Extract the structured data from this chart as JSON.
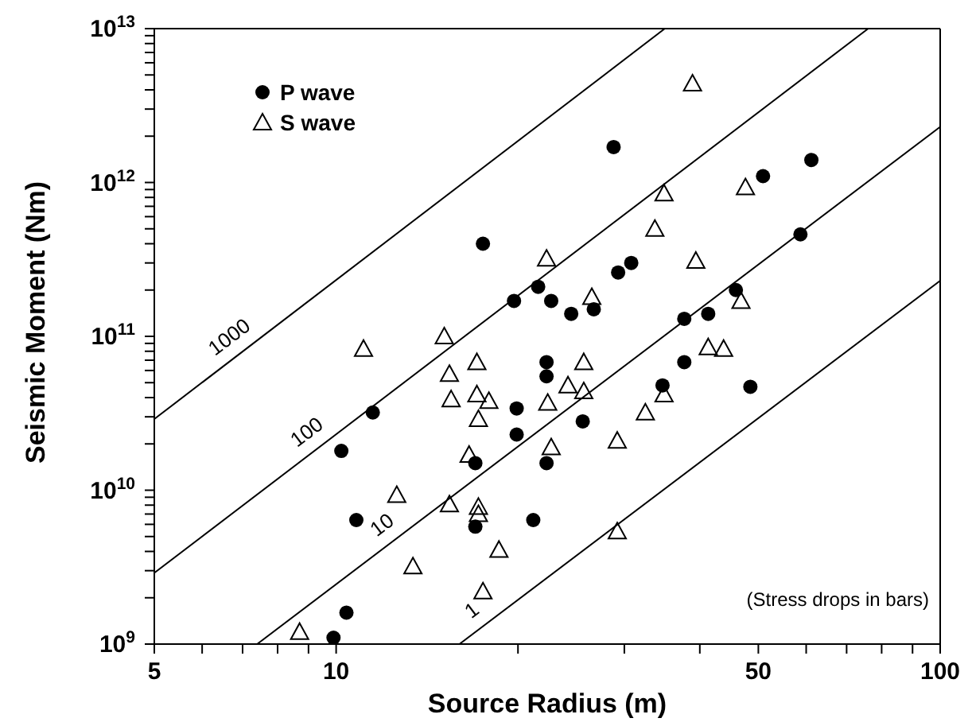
{
  "chart_data": {
    "type": "scatter",
    "xlabel": "Source Radius (m)",
    "ylabel": "Seismic Moment (Nm)",
    "log": "xy",
    "legend": "top left",
    "xlim": [
      5,
      100
    ],
    "ylim": [
      1000000000.0,
      10000000000000.0
    ],
    "xticks": [
      5,
      {
        "value": 6,
        "label": null
      },
      {
        "value": 7,
        "label": null
      },
      {
        "value": 8,
        "label": null
      },
      {
        "value": 9,
        "label": null
      },
      10,
      {
        "value": 20,
        "label": null
      },
      {
        "value": 30,
        "label": null
      },
      {
        "value": 40,
        "label": null
      },
      50,
      {
        "value": 60,
        "label": null
      },
      {
        "value": 70,
        "label": null
      },
      {
        "value": 80,
        "label": null
      },
      {
        "value": 90,
        "label": null
      },
      100
    ],
    "yticks": [
      {
        "value": 1000000000.0,
        "label": "10$^{9}$"
      },
      {
        "value": 2000000000.0,
        "label": null
      },
      {
        "value": 3000000000.0,
        "label": null
      },
      {
        "value": 4000000000.0,
        "label": null
      },
      {
        "value": 5000000000.0,
        "label": null
      },
      {
        "value": 6000000000.0,
        "label": null
      },
      {
        "value": 7000000000.0,
        "label": null
      },
      {
        "value": 8000000000.0,
        "label": null
      },
      {
        "value": 9000000000.0,
        "label": null
      },
      {
        "value": 10000000000.0,
        "label": "10$^{10}$"
      },
      {
        "value": 20000000000.0,
        "label": null
      },
      {
        "value": 30000000000.0,
        "label": null
      },
      {
        "value": 40000000000.0,
        "label": null
      },
      {
        "value": 50000000000.0,
        "label": null
      },
      {
        "value": 60000000000.0,
        "label": null
      },
      {
        "value": 70000000000.0,
        "label": null
      },
      {
        "value": 80000000000.0,
        "label": null
      },
      {
        "value": 90000000000.0,
        "label": null
      },
      {
        "value": 100000000000.0,
        "label": "10$^{11}$"
      },
      {
        "value": 200000000000.0,
        "label": null
      },
      {
        "value": 300000000000.0,
        "label": null
      },
      {
        "value": 400000000000.0,
        "label": null
      },
      {
        "value": 500000000000.0,
        "label": null
      },
      {
        "value": 600000000000.0,
        "label": null
      },
      {
        "value": 700000000000.0,
        "label": null
      },
      {
        "value": 800000000000.0,
        "label": null
      },
      {
        "value": 900000000000.0,
        "label": null
      },
      {
        "value": 1000000000000.0,
        "label": "10$^{12}$"
      },
      {
        "value": 2000000000000.0,
        "label": null
      },
      {
        "value": 3000000000000.0,
        "label": null
      },
      {
        "value": 4000000000000.0,
        "label": null
      },
      {
        "value": 5000000000000.0,
        "label": null
      },
      {
        "value": 6000000000000.0,
        "label": null
      },
      {
        "value": 7000000000000.0,
        "label": null
      },
      {
        "value": 8000000000000.0,
        "label": null
      },
      {
        "value": 9000000000000.0,
        "label": null
      },
      {
        "value": 10000000000000.0,
        "label": "10$^{13}$"
      }
    ],
    "series": [
      {
        "name": "P wave",
        "marker": "circle",
        "color": "#000000",
        "x": [
          9.9,
          10.4,
          10.8,
          10.2,
          11.5,
          17.0,
          17.0,
          17.5,
          19.7,
          19.9,
          19.9,
          21.2,
          21.6,
          22.3,
          22.3,
          22.3,
          22.7,
          24.5,
          25.6,
          26.7,
          28.8,
          29.3,
          30.8,
          34.7,
          37.7,
          37.7,
          41.3,
          45.9,
          48.5,
          50.9,
          58.7,
          61.2
        ],
        "values": [
          1100000000.0,
          1600000000.0,
          6400000000.0,
          18000000000.0,
          32000000000.0,
          15000000000.0,
          5800000000.0,
          400000000000.0,
          170000000000.0,
          34000000000.0,
          23000000000.0,
          6400000000.0,
          210000000000.0,
          68000000000.0,
          55000000000.0,
          15000000000.0,
          170000000000.0,
          140000000000.0,
          28000000000.0,
          150000000000.0,
          1700000000000.0,
          260000000000.0,
          300000000000.0,
          48000000000.0,
          130000000000.0,
          68000000000.0,
          140000000000.0,
          200000000000.0,
          47000000000.0,
          1100000000000.0,
          460000000000.0,
          1400000000000.0
        ]
      },
      {
        "name": "S wave",
        "marker": "triangle",
        "color": "#000000",
        "x": [
          22.3,
          15.1,
          11.1,
          17.1,
          38.9,
          34.9,
          47.6,
          33.7,
          39.4,
          26.5,
          46.8,
          41.3,
          43.8,
          25.7,
          15.4,
          15.5,
          17.1,
          17.9,
          17.2,
          22.4,
          24.2,
          16.6,
          22.7,
          12.6,
          15.4,
          17.2,
          17.2,
          18.6,
          13.4,
          17.5,
          8.7,
          25.7,
          34.9,
          32.5,
          29.2,
          29.2
        ],
        "values": [
          320000000000.0,
          100000000000.0,
          83000000000.0,
          68000000000.0,
          4400000000000.0,
          850000000000.0,
          930000000000.0,
          500000000000.0,
          310000000000.0,
          180000000000.0,
          170000000000.0,
          85000000000.0,
          83000000000.0,
          68000000000.0,
          57000000000.0,
          39000000000.0,
          42000000000.0,
          38000000000.0,
          29000000000.0,
          37000000000.0,
          48000000000.0,
          17000000000.0,
          19000000000.0,
          9300000000.0,
          8100000000.0,
          7800000000.0,
          7000000000.0,
          4100000000.0,
          3200000000.0,
          2200000000.0,
          1200000000.0,
          44000000000.0,
          42000000000.0,
          32000000000.0,
          21000000000.0,
          5400000000.0
        ]
      },
      {
        "name": "1000",
        "type": "line",
        "marker": "none",
        "line_style": "solid",
        "color": "#000000",
        "x": [
          5,
          35
        ],
        "values": [
          29000000000.0,
          10000000000000.0
        ]
      },
      {
        "name": "100",
        "type": "line",
        "marker": "none",
        "line_style": "solid",
        "color": "#000000",
        "x": [
          5,
          76
        ],
        "values": [
          2900000000.0,
          10000000000000.0
        ]
      },
      {
        "name": "10",
        "type": "line",
        "marker": "none",
        "line_style": "solid",
        "color": "#000000",
        "x": [
          7.4,
          100
        ],
        "values": [
          1000000000.0,
          2300000000000.0
        ]
      },
      {
        "name": "1",
        "type": "line",
        "marker": "none",
        "line_style": "solid",
        "color": "#000000",
        "x": [
          16,
          100
        ],
        "values": [
          1000000000.0,
          230000000000.0
        ]
      }
    ],
    "annotations": [
      "(Stress drops in bars)"
    ]
  }
}
